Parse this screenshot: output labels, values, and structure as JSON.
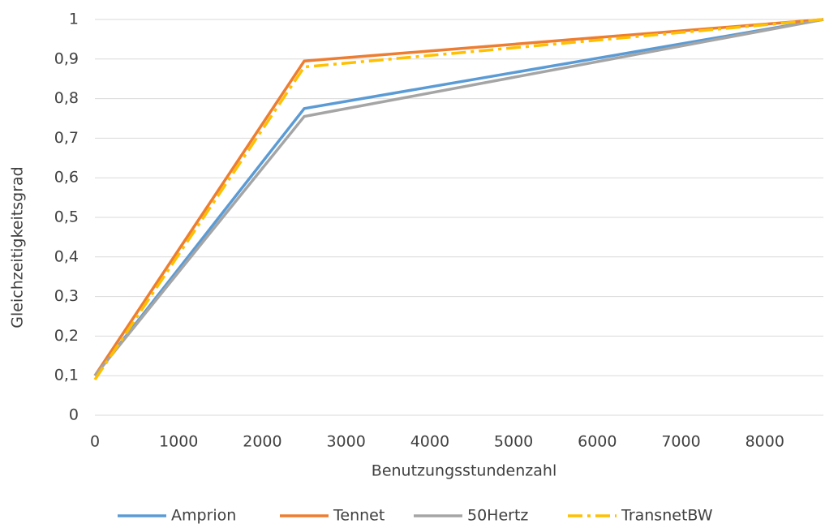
{
  "chart_data": {
    "type": "line",
    "x_label": "Benutzungsstundenzahl",
    "y_label": "Gleichzeitigkeitsgrad",
    "x": [
      0,
      2500,
      8700
    ],
    "series": [
      {
        "name": "Amprion",
        "color": "#5b9bd5",
        "style": "solid",
        "values": [
          0.1,
          0.775,
          1
        ]
      },
      {
        "name": "Tennet",
        "color": "#ed7d31",
        "style": "solid",
        "values": [
          0.1,
          0.895,
          1
        ]
      },
      {
        "name": "50Hertz",
        "color": "#a5a5a5",
        "style": "solid",
        "values": [
          0.1,
          0.755,
          1
        ]
      },
      {
        "name": "TransnetBW",
        "color": "#ffc000",
        "style": "dash-dot",
        "values": [
          0.09,
          0.88,
          1
        ]
      }
    ],
    "xlim": [
      0,
      8700
    ],
    "xticks": [
      0,
      1000,
      2000,
      3000,
      4000,
      5000,
      6000,
      7000,
      8000
    ],
    "ylim": [
      0,
      1
    ],
    "yticks": [
      0,
      {
        "value": 0.1,
        "label": "0,1"
      },
      {
        "value": 0.2,
        "label": "0,2"
      },
      {
        "value": 0.3,
        "label": "0,3"
      },
      {
        "value": 0.4,
        "label": "0,4"
      },
      {
        "value": 0.5,
        "label": "0,5"
      },
      {
        "value": 0.6,
        "label": "0,6"
      },
      {
        "value": 0.7,
        "label": "0,7"
      },
      {
        "value": 0.8,
        "label": "0,8"
      },
      {
        "value": 0.9,
        "label": "0,9"
      },
      1
    ],
    "grid": true,
    "legend": "bottom"
  }
}
